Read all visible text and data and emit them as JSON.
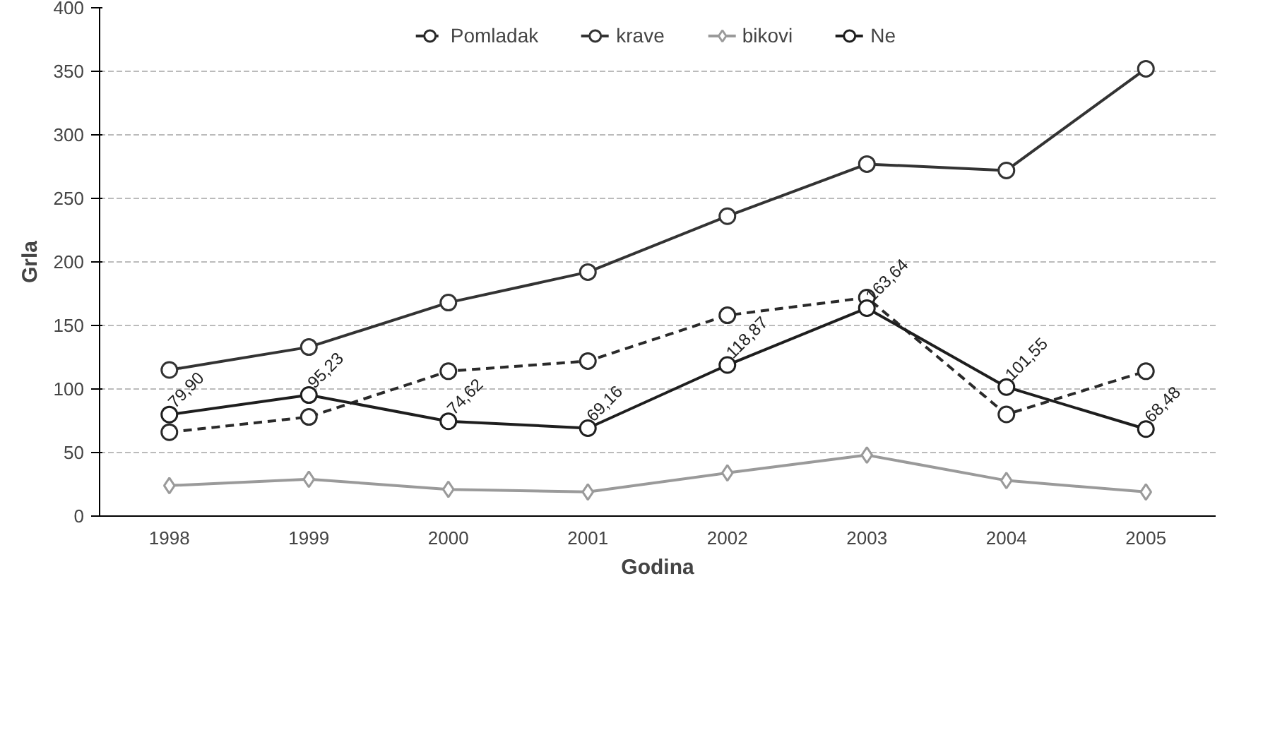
{
  "chart_data": {
    "type": "line",
    "xlabel": "Godina",
    "ylabel": "Grla",
    "categories": [
      "1998",
      "1999",
      "2000",
      "2001",
      "2002",
      "2003",
      "2004",
      "2005"
    ],
    "ylim": [
      0,
      400
    ],
    "yticks": [
      0,
      50,
      100,
      150,
      200,
      250,
      300,
      350,
      400
    ],
    "grid": "y",
    "legend": "top",
    "series": [
      {
        "name": "Pomladak",
        "color": "#2a2a2a",
        "marker": "circle",
        "line_style": "dashed",
        "values": [
          66,
          78,
          114,
          122,
          158,
          172,
          80,
          114
        ]
      },
      {
        "name": "krave",
        "color": "#333333",
        "marker": "circle",
        "line_style": "solid",
        "values": [
          115,
          133,
          168,
          192,
          236,
          277,
          272,
          352
        ]
      },
      {
        "name": "bikovi",
        "color": "#9a9a9a",
        "marker": "diamond",
        "line_style": "solid",
        "values": [
          24,
          29,
          21,
          19,
          34,
          48,
          28,
          19
        ]
      },
      {
        "name": "Ne",
        "color": "#1e1e1e",
        "marker": "circle",
        "line_style": "solid",
        "values": [
          79.9,
          95.23,
          74.62,
          69.16,
          118.87,
          163.64,
          101.55,
          68.48
        ],
        "value_labels": [
          "79,90",
          "95,23",
          "74,62",
          "69,16",
          "118,87",
          "163,64",
          "101,55",
          "68,48"
        ]
      }
    ]
  }
}
